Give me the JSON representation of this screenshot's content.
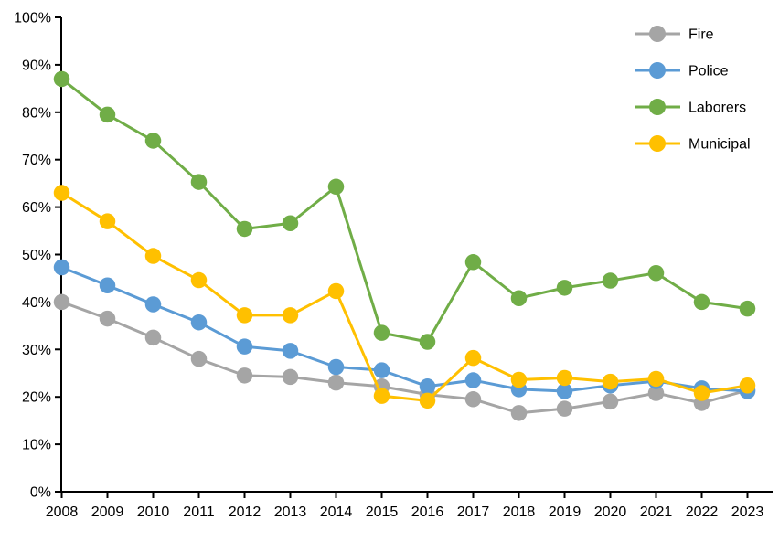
{
  "chart_data": {
    "type": "line",
    "title": "",
    "xlabel": "",
    "ylabel": "",
    "x": [
      2008,
      2009,
      2010,
      2011,
      2012,
      2013,
      2014,
      2015,
      2016,
      2017,
      2018,
      2019,
      2020,
      2021,
      2022,
      2023
    ],
    "x_tick_labels": [
      "2008",
      "2009",
      "2010",
      "2011",
      "2012",
      "2013",
      "2014",
      "2015",
      "2016",
      "2017",
      "2018",
      "2019",
      "2020",
      "2021",
      "2022",
      "2023"
    ],
    "ylim": [
      0,
      100
    ],
    "y_tick_values": [
      0,
      10,
      20,
      30,
      40,
      50,
      60,
      70,
      80,
      90,
      100
    ],
    "y_tick_labels": [
      "0%",
      "10%",
      "20%",
      "30%",
      "40%",
      "50%",
      "60%",
      "70%",
      "80%",
      "90%",
      "100%"
    ],
    "grid": false,
    "legend_position": "top-right",
    "axis_color": "#000000",
    "series": [
      {
        "name": "Fire",
        "color": "#A5A5A5",
        "values": [
          40.0,
          36.5,
          32.5,
          28.0,
          24.5,
          24.2,
          23.0,
          22.2,
          20.5,
          19.5,
          16.6,
          17.5,
          19.0,
          20.8,
          18.7,
          21.4
        ]
      },
      {
        "name": "Police",
        "color": "#5B9BD5",
        "values": [
          47.3,
          43.5,
          39.5,
          35.7,
          30.6,
          29.7,
          26.3,
          25.6,
          22.2,
          23.5,
          21.6,
          21.2,
          22.4,
          23.3,
          21.8,
          21.2
        ]
      },
      {
        "name": "Laborers",
        "color": "#70AD47",
        "values": [
          87.0,
          79.5,
          74.0,
          65.3,
          55.4,
          56.6,
          64.3,
          33.5,
          31.6,
          48.4,
          40.8,
          43.0,
          44.5,
          46.1,
          40.0,
          38.6
        ]
      },
      {
        "name": "Municipal",
        "color": "#FFC000",
        "values": [
          63.0,
          57.0,
          49.7,
          44.6,
          37.2,
          37.2,
          42.3,
          20.2,
          19.2,
          28.2,
          23.6,
          24.0,
          23.2,
          23.8,
          20.8,
          22.4
        ]
      }
    ]
  }
}
